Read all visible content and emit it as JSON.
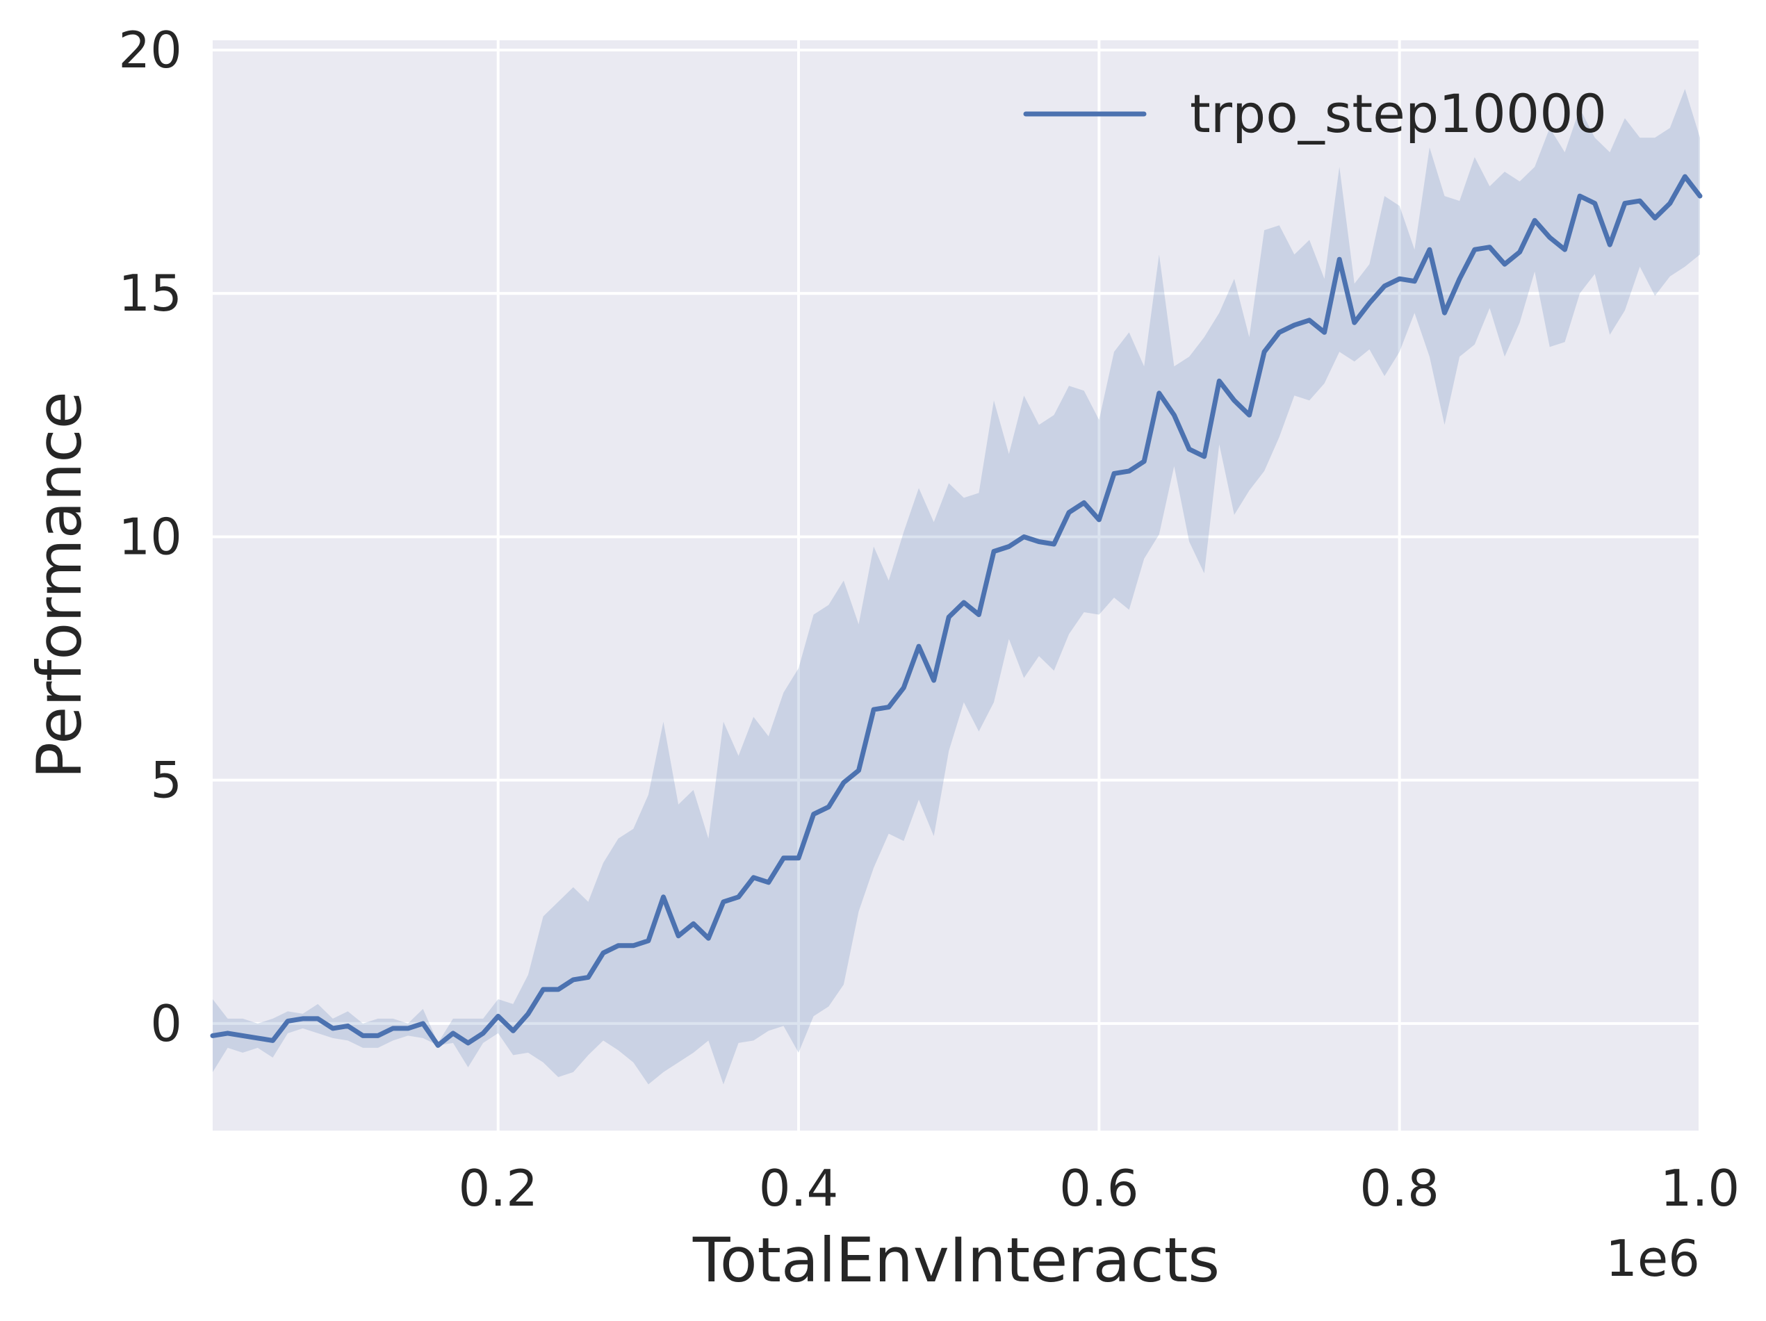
{
  "chart_data": {
    "type": "line",
    "xlabel": "TotalEnvInteracts",
    "ylabel": "Performance",
    "x_offset_label": "1e6",
    "xlim": [
      0.01,
      1.0
    ],
    "ylim": [
      -2.2,
      20.2
    ],
    "x_ticks": [
      0.2,
      0.4,
      0.6,
      0.8,
      1.0
    ],
    "x_tick_labels": [
      "0.2",
      "0.4",
      "0.6",
      "0.8",
      "1.0"
    ],
    "y_ticks": [
      0,
      5,
      10,
      15,
      20
    ],
    "y_tick_labels": [
      "0",
      "5",
      "10",
      "15",
      "20"
    ],
    "grid": true,
    "legend_position": "top-right",
    "colors": {
      "background": "#eaeaf2",
      "grid": "#ffffff",
      "line": "#4c72b0",
      "band": "#4c72b0"
    },
    "series": [
      {
        "name": "trpo_step10000",
        "x": [
          0.01,
          0.02,
          0.03,
          0.04,
          0.05,
          0.06,
          0.07,
          0.08,
          0.09,
          0.1,
          0.11,
          0.12,
          0.13,
          0.14,
          0.15,
          0.16,
          0.17,
          0.18,
          0.19,
          0.2,
          0.21,
          0.22,
          0.23,
          0.24,
          0.25,
          0.26,
          0.27,
          0.28,
          0.29,
          0.3,
          0.31,
          0.32,
          0.33,
          0.34,
          0.35,
          0.36,
          0.37,
          0.38,
          0.39,
          0.4,
          0.41,
          0.42,
          0.43,
          0.44,
          0.45,
          0.46,
          0.47,
          0.48,
          0.49,
          0.5,
          0.51,
          0.52,
          0.53,
          0.54,
          0.55,
          0.56,
          0.57,
          0.58,
          0.59,
          0.6,
          0.61,
          0.62,
          0.63,
          0.64,
          0.65,
          0.66,
          0.67,
          0.68,
          0.69,
          0.7,
          0.71,
          0.72,
          0.73,
          0.74,
          0.75,
          0.76,
          0.77,
          0.78,
          0.79,
          0.8,
          0.81,
          0.82,
          0.83,
          0.84,
          0.85,
          0.86,
          0.87,
          0.88,
          0.89,
          0.9,
          0.91,
          0.92,
          0.93,
          0.94,
          0.95,
          0.96,
          0.97,
          0.98,
          0.99,
          1.0
        ],
        "mean": [
          -0.25,
          -0.2,
          -0.25,
          -0.3,
          -0.35,
          0.05,
          0.1,
          0.1,
          -0.1,
          -0.05,
          -0.25,
          -0.25,
          -0.1,
          -0.1,
          0.0,
          -0.45,
          -0.2,
          -0.4,
          -0.2,
          0.15,
          -0.15,
          0.2,
          0.7,
          0.7,
          0.9,
          0.95,
          1.45,
          1.6,
          1.6,
          1.7,
          2.6,
          1.8,
          2.05,
          1.75,
          2.5,
          2.6,
          3.0,
          2.9,
          3.4,
          3.4,
          4.3,
          4.45,
          4.95,
          5.2,
          6.45,
          6.5,
          6.9,
          7.75,
          7.05,
          8.35,
          8.65,
          8.4,
          9.7,
          9.8,
          10.0,
          9.9,
          9.85,
          10.5,
          10.7,
          10.35,
          11.3,
          11.35,
          11.55,
          12.95,
          12.5,
          11.8,
          11.65,
          13.2,
          12.8,
          12.5,
          13.8,
          14.2,
          14.35,
          14.45,
          14.2,
          15.7,
          14.4,
          14.8,
          15.15,
          15.3,
          15.25,
          15.9,
          14.6,
          15.3,
          15.9,
          15.95,
          15.6,
          15.85,
          16.5,
          16.15,
          15.9,
          17.0,
          16.85,
          16.0,
          16.85,
          16.9,
          16.55,
          16.85,
          17.4,
          17.0
        ],
        "upper": [
          0.5,
          0.1,
          0.1,
          0.0,
          0.1,
          0.25,
          0.2,
          0.4,
          0.1,
          0.25,
          0.0,
          0.1,
          0.1,
          0.0,
          0.3,
          -0.4,
          0.1,
          0.1,
          0.1,
          0.5,
          0.4,
          1.0,
          2.2,
          2.5,
          2.8,
          2.5,
          3.3,
          3.8,
          4.0,
          4.7,
          6.2,
          4.5,
          4.8,
          3.8,
          6.2,
          5.5,
          6.3,
          5.9,
          6.8,
          7.3,
          8.4,
          8.6,
          9.1,
          8.2,
          9.8,
          9.1,
          10.1,
          11.0,
          10.3,
          11.1,
          10.8,
          10.9,
          12.8,
          11.7,
          12.9,
          12.3,
          12.5,
          13.1,
          13.0,
          12.4,
          13.8,
          14.2,
          13.5,
          15.8,
          13.5,
          13.7,
          14.1,
          14.6,
          15.3,
          14.1,
          16.3,
          16.4,
          15.8,
          16.1,
          15.3,
          17.6,
          15.2,
          15.6,
          17.0,
          16.8,
          15.9,
          18.0,
          17.0,
          16.9,
          17.8,
          17.2,
          17.5,
          17.3,
          17.6,
          18.4,
          17.9,
          18.8,
          18.2,
          17.9,
          18.6,
          18.2,
          18.2,
          18.4,
          19.2,
          18.2
        ],
        "lower": [
          -1.0,
          -0.5,
          -0.6,
          -0.5,
          -0.7,
          -0.2,
          -0.1,
          -0.2,
          -0.3,
          -0.35,
          -0.5,
          -0.5,
          -0.35,
          -0.25,
          -0.3,
          -0.45,
          -0.4,
          -0.9,
          -0.4,
          -0.2,
          -0.65,
          -0.6,
          -0.8,
          -1.1,
          -1.0,
          -0.65,
          -0.35,
          -0.55,
          -0.8,
          -1.25,
          -1.0,
          -0.8,
          -0.6,
          -0.35,
          -1.25,
          -0.4,
          -0.35,
          -0.15,
          -0.05,
          -0.6,
          0.15,
          0.35,
          0.8,
          2.3,
          3.2,
          3.9,
          3.75,
          4.6,
          3.85,
          5.6,
          6.6,
          6.0,
          6.6,
          7.9,
          7.1,
          7.55,
          7.25,
          8.0,
          8.45,
          8.4,
          8.75,
          8.5,
          9.55,
          10.05,
          11.45,
          9.9,
          9.25,
          11.9,
          10.45,
          10.95,
          11.35,
          12.05,
          12.9,
          12.8,
          13.15,
          13.8,
          13.6,
          13.85,
          13.3,
          13.8,
          14.6,
          13.7,
          12.3,
          13.7,
          13.95,
          14.7,
          13.7,
          14.4,
          15.45,
          13.9,
          14.0,
          15.0,
          15.4,
          14.15,
          14.65,
          15.55,
          14.95,
          15.35,
          15.55,
          15.8
        ]
      }
    ]
  }
}
